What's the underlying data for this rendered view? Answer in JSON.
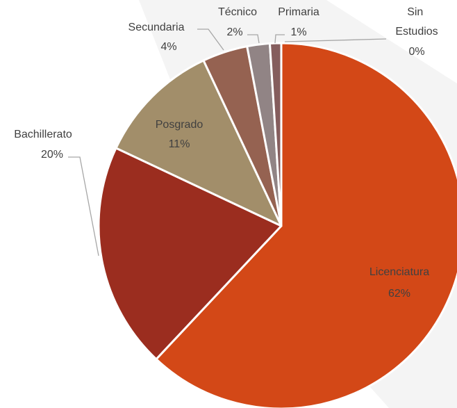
{
  "chart_data": {
    "type": "pie",
    "categories": [
      "Licenciatura",
      "Bachillerato",
      "Posgrado",
      "Secundaria",
      "Técnico",
      "Primaria",
      "Sin Estudios"
    ],
    "values": [
      62,
      20,
      11,
      4,
      2,
      1,
      0
    ],
    "value_labels": [
      "62%",
      "20%",
      "11%",
      "4%",
      "2%",
      "1%",
      "0%"
    ],
    "colors": [
      "#d34817",
      "#9b2d1f",
      "#a28e6a",
      "#956251",
      "#918485",
      "#855d5d",
      "#7a5a50"
    ]
  }
}
